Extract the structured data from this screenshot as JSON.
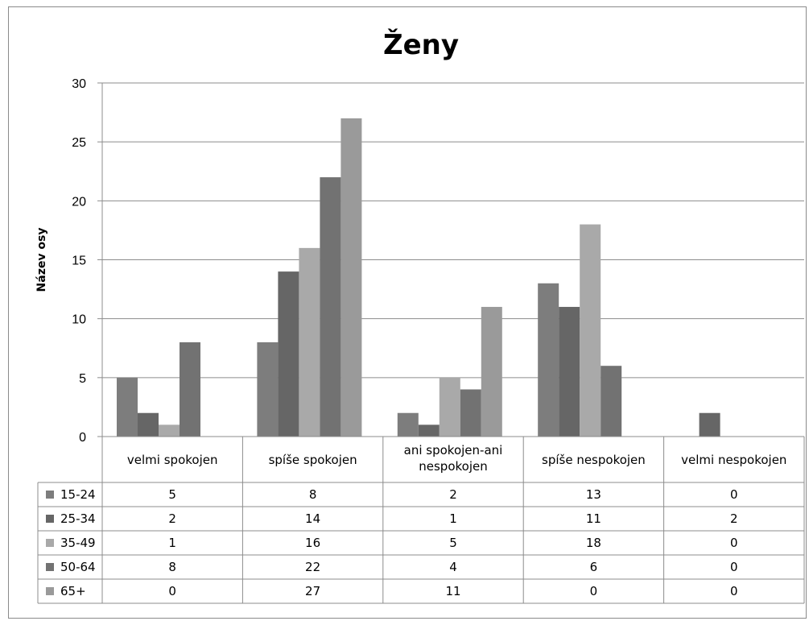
{
  "chart_data": {
    "type": "bar",
    "title": "Ženy",
    "ylabel": "Název osy",
    "xlabel": "",
    "ylim": [
      0,
      30
    ],
    "yticks": [
      0,
      5,
      10,
      15,
      20,
      25,
      30
    ],
    "grid": true,
    "legend_placement": "data-table",
    "categories": [
      "velmi spokojen",
      "spíše spokojen",
      "ani spokojen-ani nespokojen",
      "spíše nespokojen",
      "velmi nespokojen"
    ],
    "series": [
      {
        "name": "15-24",
        "color": "#7d7d7d",
        "values": [
          5,
          8,
          2,
          13,
          0
        ]
      },
      {
        "name": "25-34",
        "color": "#666666",
        "values": [
          2,
          14,
          1,
          11,
          2
        ]
      },
      {
        "name": "35-49",
        "color": "#a9a9a9",
        "values": [
          1,
          16,
          5,
          18,
          0
        ]
      },
      {
        "name": "50-64",
        "color": "#727272",
        "values": [
          8,
          22,
          4,
          6,
          0
        ]
      },
      {
        "name": "65+",
        "color": "#9a9a9a",
        "values": [
          0,
          27,
          11,
          0,
          0
        ]
      }
    ]
  }
}
